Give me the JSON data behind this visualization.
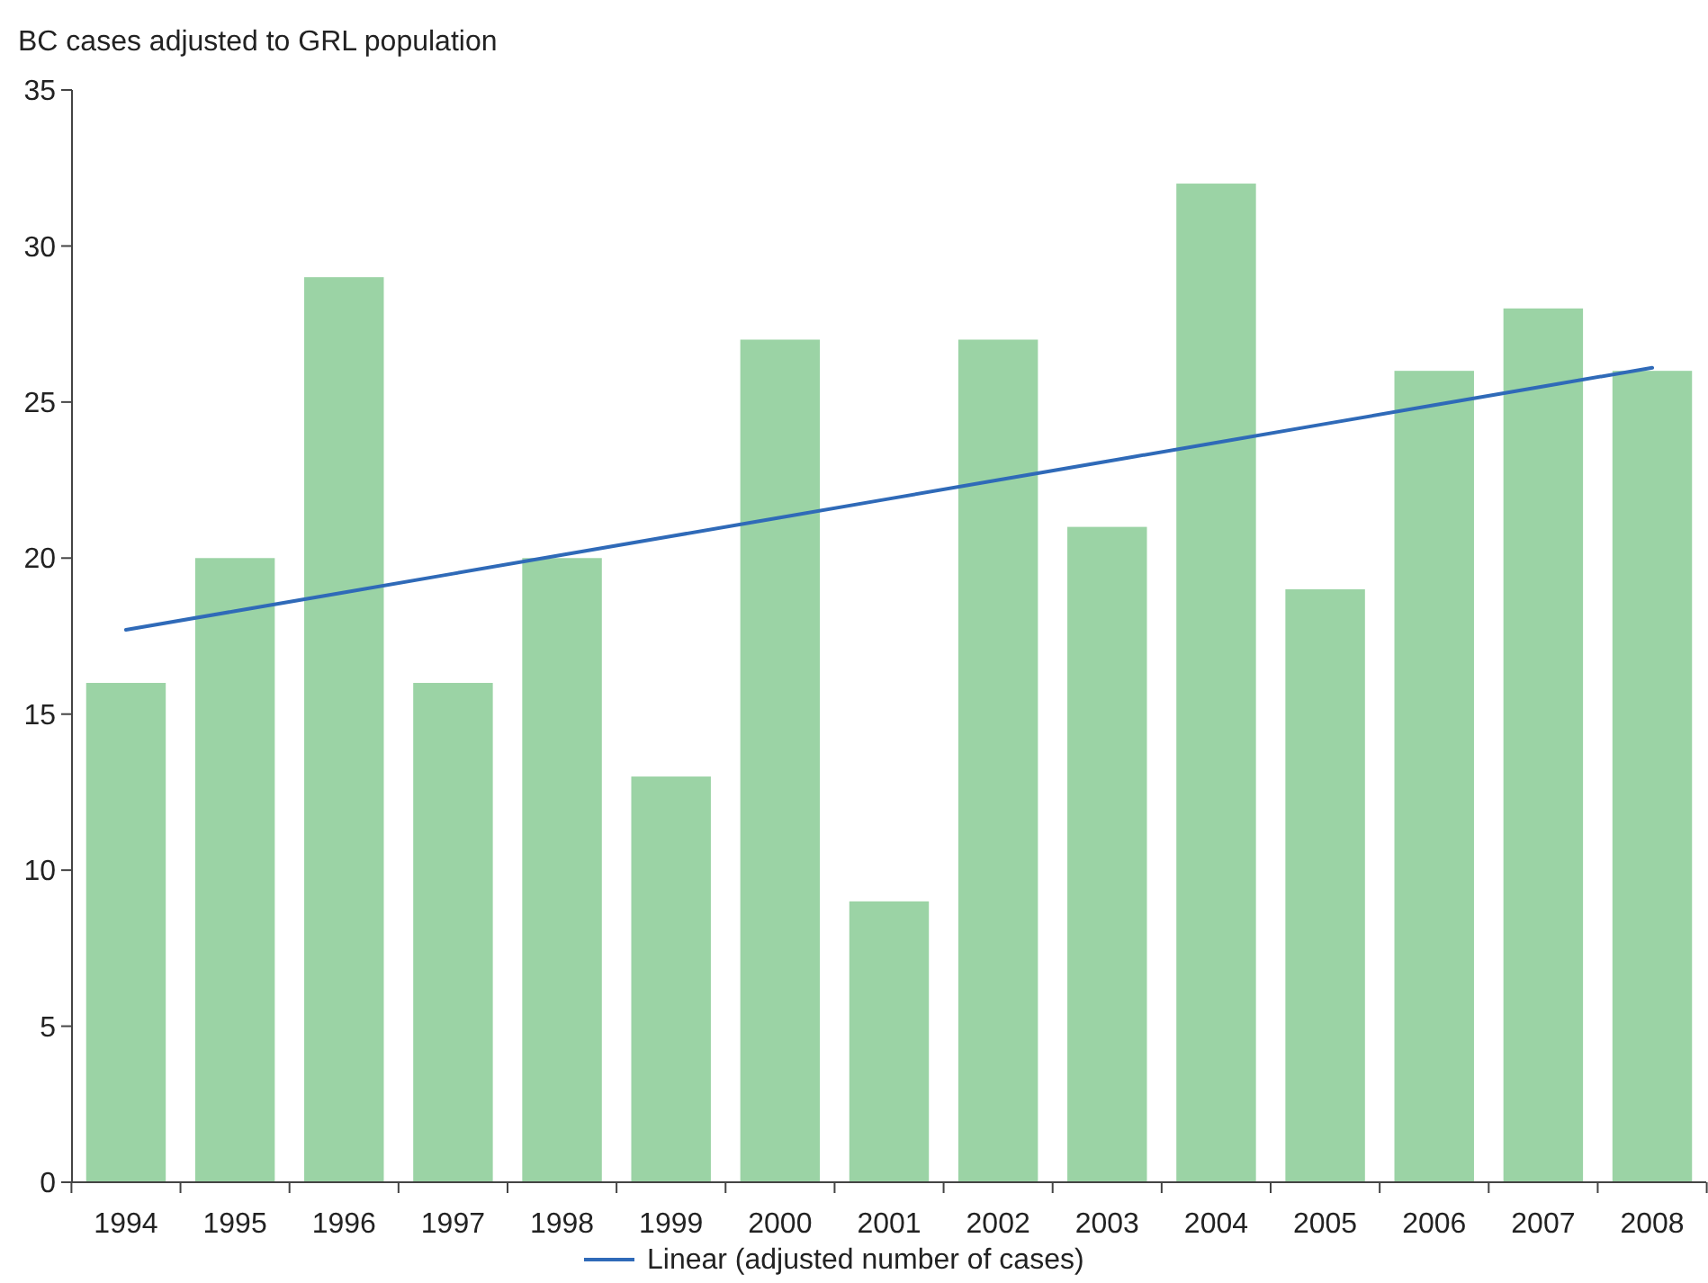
{
  "chart_data": {
    "type": "bar",
    "ylabel": "BC cases adjusted to GRL population",
    "categories": [
      "1994",
      "1995",
      "1996",
      "1997",
      "1998",
      "1999",
      "2000",
      "2001",
      "2002",
      "2003",
      "2004",
      "2005",
      "2006",
      "2007",
      "2008"
    ],
    "series": [
      {
        "color": "#9bd3a5",
        "values": [
          16,
          20,
          29,
          16,
          20,
          13,
          27,
          9,
          27,
          21,
          32,
          19,
          26,
          28,
          26
        ]
      },
      {
        "type": "line",
        "name": "Linear (adjusted number of cases)",
        "color": "#2f6ab8",
        "values": [
          17.7,
          18.3,
          18.9,
          19.5,
          20.1,
          20.7,
          21.3,
          21.9,
          22.5,
          23.1,
          23.7,
          24.3,
          24.9,
          25.5,
          26.1
        ]
      }
    ],
    "ylim": [
      0,
      35
    ],
    "yticks": [
      0,
      5,
      10,
      15,
      20,
      25,
      30,
      35
    ],
    "grid": false,
    "legend": "bottom",
    "marker": "none",
    "line_style": "solid"
  }
}
